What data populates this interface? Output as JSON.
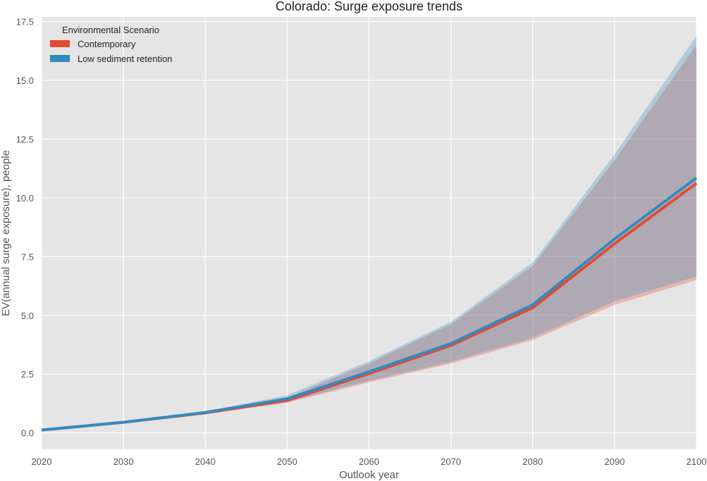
{
  "chart_data": {
    "type": "line",
    "title": "Colorado: Surge exposure trends",
    "xlabel": "Outlook year",
    "ylabel": "EV(annual surge exposure), people",
    "xlim": [
      2020,
      2100
    ],
    "ylim": [
      -0.7,
      17.7
    ],
    "x_ticks": [
      2020,
      2030,
      2040,
      2050,
      2060,
      2070,
      2080,
      2090,
      2100
    ],
    "y_ticks": [
      0.0,
      2.5,
      5.0,
      7.5,
      10.0,
      12.5,
      15.0,
      17.5
    ],
    "y_tick_labels": [
      "0.0",
      "2.5",
      "5.0",
      "7.5",
      "10.0",
      "12.5",
      "15.0",
      "17.5"
    ],
    "grid": true,
    "legend": {
      "title": "Environmental Scenario",
      "placement": "top-left"
    },
    "x": [
      2020,
      2030,
      2040,
      2050,
      2060,
      2070,
      2080,
      2090,
      2100
    ],
    "series": [
      {
        "name": "Contemporary",
        "color": "#E24A33",
        "values": [
          0.12,
          0.45,
          0.85,
          1.38,
          2.52,
          3.72,
          5.32,
          8.05,
          10.62
        ],
        "lower": [
          0.1,
          0.43,
          0.8,
          1.28,
          2.15,
          2.95,
          3.95,
          5.45,
          6.5
        ],
        "upper": [
          0.14,
          0.47,
          0.88,
          1.5,
          2.95,
          4.62,
          7.1,
          11.6,
          16.5
        ]
      },
      {
        "name": "Low sediment retention",
        "color": "#348ABD",
        "values": [
          0.12,
          0.45,
          0.87,
          1.45,
          2.6,
          3.8,
          5.45,
          8.25,
          10.85
        ],
        "lower": [
          0.1,
          0.44,
          0.82,
          1.32,
          2.22,
          3.02,
          4.05,
          5.6,
          6.65
        ],
        "upper": [
          0.14,
          0.48,
          0.91,
          1.6,
          3.05,
          4.72,
          7.25,
          11.85,
          16.9
        ]
      }
    ]
  }
}
